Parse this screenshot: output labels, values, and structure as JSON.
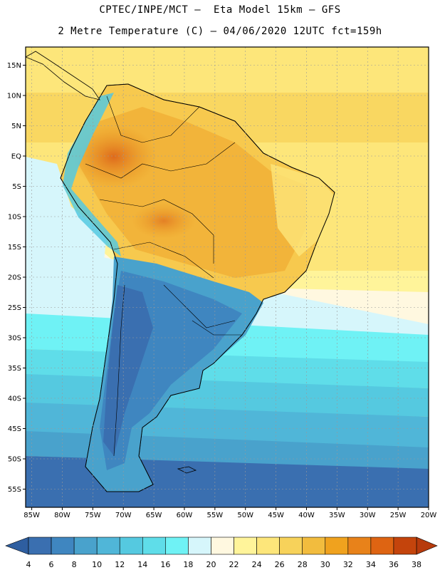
{
  "header": {
    "line1": "CPTEC/INPE/MCT –  Eta Model 15km – GFS",
    "line2": "2 Metre Temperature (C) – 04/06/2020 12UTC fct=159h"
  },
  "map": {
    "lat_range": [
      -58,
      18
    ],
    "lon_range": [
      -86,
      -20
    ],
    "lat_labels": [
      "15N",
      "10N",
      "5N",
      "EQ",
      "5S",
      "10S",
      "15S",
      "20S",
      "25S",
      "30S",
      "35S",
      "40S",
      "45S",
      "50S",
      "55S"
    ],
    "lat_values": [
      15,
      10,
      5,
      0,
      -5,
      -10,
      -15,
      -20,
      -25,
      -30,
      -35,
      -40,
      -45,
      -50,
      -55
    ],
    "lon_labels": [
      "85W",
      "80W",
      "75W",
      "70W",
      "65W",
      "60W",
      "55W",
      "50W",
      "45W",
      "40W",
      "35W",
      "30W",
      "25W",
      "20W"
    ],
    "lon_values": [
      -85,
      -80,
      -75,
      -70,
      -65,
      -60,
      -55,
      -50,
      -45,
      -40,
      -35,
      -30,
      -25,
      -20
    ]
  },
  "colorbar": {
    "levels": [
      "4",
      "6",
      "8",
      "10",
      "12",
      "14",
      "16",
      "18",
      "20",
      "22",
      "24",
      "26",
      "28",
      "30",
      "32",
      "34",
      "36",
      "38"
    ],
    "colors": [
      "#3a6fb0",
      "#3f86c0",
      "#49a2cc",
      "#50b6d8",
      "#55c9e0",
      "#5fdde9",
      "#6ff2f5",
      "#d6f6fb",
      "#fff8e0",
      "#fff49a",
      "#fde67a",
      "#f7d25a",
      "#f2bc3e",
      "#f0a21e",
      "#e8821a",
      "#de6412",
      "#c4440c"
    ],
    "low_color": "#2e5ea0",
    "high_color": "#b73a0c"
  }
}
